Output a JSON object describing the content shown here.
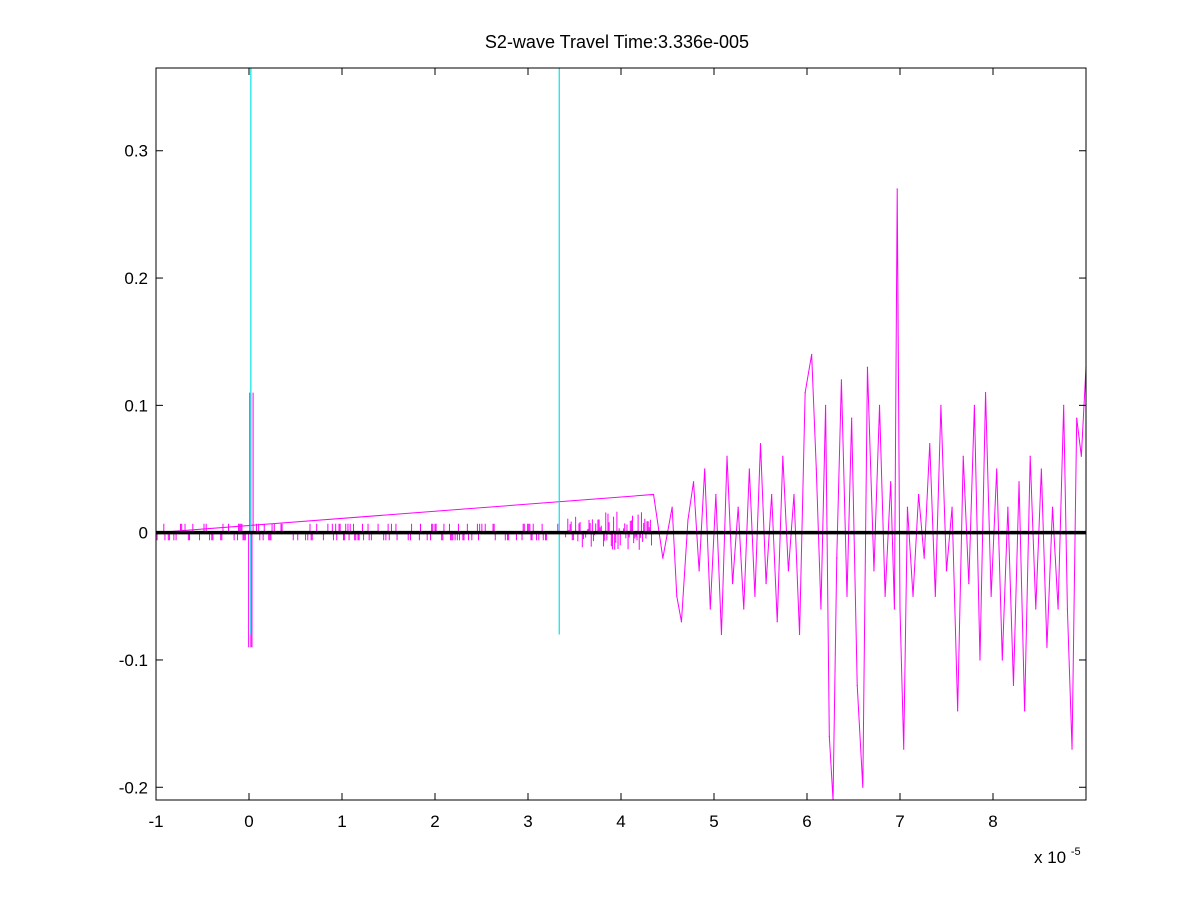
{
  "chart_data": {
    "type": "line",
    "title": "S2-wave Travel Time:3.336e-005",
    "xlabel": "",
    "ylabel": "",
    "x_exponent": {
      "base": "x 10",
      "power": "-5"
    },
    "xlim": [
      -1,
      9
    ],
    "ylim": [
      -0.21,
      0.365
    ],
    "xticks": [
      -1,
      0,
      1,
      2,
      3,
      4,
      5,
      6,
      7,
      8
    ],
    "xtick_labels": [
      "-1",
      "0",
      "1",
      "2",
      "3",
      "4",
      "5",
      "6",
      "7",
      "8"
    ],
    "yticks": [
      -0.2,
      -0.1,
      0,
      0.1,
      0.2,
      0.3
    ],
    "ytick_labels": [
      "-0.2",
      "-0.1",
      "0",
      "0.1",
      "0.2",
      "0.3"
    ],
    "grid": false,
    "legend": "none",
    "colors": {
      "signal": "#ff00ff",
      "marker": "#00e5e5",
      "baseline": "#000000",
      "axes": "#000000"
    },
    "markers": [
      {
        "x": 0.02,
        "y_from": -0.08,
        "y_to": 0.365
      },
      {
        "x": 3.336,
        "y_from": -0.08,
        "y_to": 0.365
      }
    ],
    "baseline": {
      "y": 0
    },
    "series": [
      {
        "x": [
          -1.0,
          4.35,
          4.45,
          4.55,
          4.6,
          4.65,
          4.72,
          4.78,
          4.84,
          4.9,
          4.96,
          5.02,
          5.08,
          5.14,
          5.2,
          5.26,
          5.32,
          5.38,
          5.44,
          5.5,
          5.56,
          5.62,
          5.68,
          5.74,
          5.8,
          5.86,
          5.92,
          5.98,
          6.05,
          6.1,
          6.15,
          6.2,
          6.24,
          6.28,
          6.32,
          6.37,
          6.43,
          6.48,
          6.54,
          6.6,
          6.65,
          6.72,
          6.78,
          6.84,
          6.9,
          6.94,
          6.97,
          7.0,
          7.04,
          7.08,
          7.14,
          7.2,
          7.26,
          7.32,
          7.38,
          7.44,
          7.5,
          7.56,
          7.62,
          7.68,
          7.74,
          7.8,
          7.86,
          7.92,
          7.98,
          8.04,
          8.1,
          8.16,
          8.22,
          8.28,
          8.34,
          8.4,
          8.46,
          8.52,
          8.58,
          8.64,
          8.7,
          8.76,
          8.8,
          8.85,
          8.9,
          8.95,
          9.0
        ],
        "y": [
          0.0,
          0.03,
          -0.02,
          0.02,
          -0.05,
          -0.07,
          0.01,
          0.04,
          -0.03,
          0.05,
          -0.06,
          0.03,
          -0.08,
          0.06,
          -0.04,
          0.02,
          -0.06,
          0.05,
          -0.05,
          0.07,
          -0.04,
          0.03,
          -0.07,
          0.06,
          -0.03,
          0.03,
          -0.08,
          0.11,
          0.14,
          0.05,
          -0.06,
          0.1,
          -0.16,
          -0.21,
          -0.02,
          0.12,
          -0.05,
          0.09,
          -0.12,
          -0.2,
          0.13,
          -0.03,
          0.1,
          -0.05,
          0.04,
          -0.06,
          0.27,
          -0.06,
          -0.17,
          0.02,
          -0.05,
          0.03,
          -0.02,
          0.07,
          -0.05,
          0.1,
          -0.03,
          0.02,
          -0.14,
          0.06,
          -0.04,
          0.1,
          -0.1,
          0.11,
          -0.05,
          0.05,
          -0.1,
          0.02,
          -0.12,
          0.04,
          -0.14,
          0.06,
          -0.06,
          0.05,
          -0.09,
          0.02,
          -0.06,
          0.1,
          -0.06,
          -0.17,
          0.09,
          0.06,
          0.13
        ]
      }
    ]
  }
}
